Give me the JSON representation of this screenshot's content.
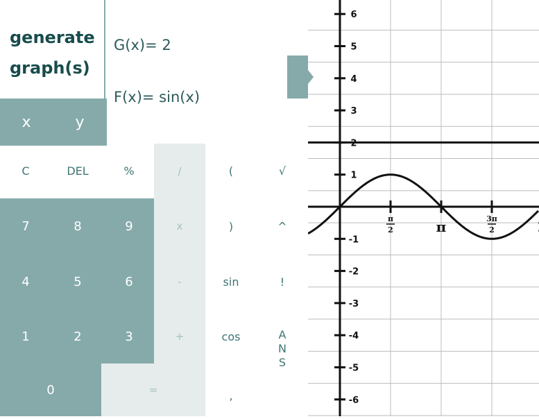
{
  "generate": {
    "line1": "generate",
    "line2": "graph(s)"
  },
  "equations": {
    "g": "G(x)= 2",
    "f": "F(x)= sin(x)"
  },
  "vars": {
    "x": "x",
    "y": "y"
  },
  "keys": {
    "c": "C",
    "del": "DEL",
    "percent": "%",
    "divide": "/",
    "lparen": "(",
    "sqrt": "√",
    "seven": "7",
    "eight": "8",
    "nine": "9",
    "times": "x",
    "rparen": ")",
    "power": "^",
    "four": "4",
    "five": "5",
    "six": "6",
    "minus": "-",
    "sin": "sin",
    "fact": "!",
    "one": "1",
    "two": "2",
    "three": "3",
    "plus": "+",
    "cos": "cos",
    "ans1": "A",
    "ans2": "N",
    "ans3": "S",
    "zero": "0",
    "equals": "=",
    "comma": ","
  },
  "graph": {
    "y_ticks": [
      "6",
      "5",
      "4",
      "3",
      "2",
      "1",
      "-1",
      "-2",
      "-3",
      "-4",
      "-5",
      "-6"
    ],
    "x_ticks": [
      {
        "num": "π",
        "den": "2"
      },
      {
        "sym": "π"
      },
      {
        "num": "3π",
        "den": "2"
      },
      {
        "sym": "2"
      }
    ],
    "functions": [
      "2",
      "sin(x)"
    ]
  },
  "colors": {
    "teal": "#86aaaa",
    "light": "#e6ecec",
    "dark_teal": "#184c4c",
    "text_teal": "#3f7575"
  }
}
